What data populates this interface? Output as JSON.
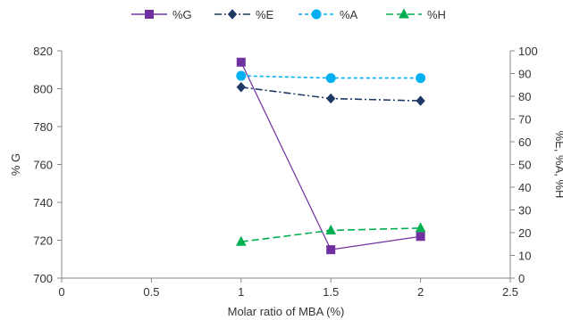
{
  "chart_data": {
    "type": "line",
    "xlabel": "Molar ratio of MBA (%)",
    "ylabel_left": "% G",
    "ylabel_right": "%E, %A, %H",
    "xlim": [
      0,
      2.5
    ],
    "x_ticks": [
      "0",
      "0.5",
      "1",
      "1.5",
      "2",
      "2.5"
    ],
    "y_left_lim": [
      700,
      820
    ],
    "y_left_ticks": [
      "700",
      "720",
      "740",
      "760",
      "780",
      "800",
      "820"
    ],
    "y_right_lim": [
      0,
      100
    ],
    "y_right_ticks": [
      "0",
      "10",
      "20",
      "30",
      "40",
      "50",
      "60",
      "70",
      "80",
      "90",
      "100"
    ],
    "grid": false,
    "legend_position": "top",
    "series": [
      {
        "name": "%G",
        "axis": "left",
        "color": "#7030a0",
        "dash": "solid",
        "marker": "square",
        "x": [
          1,
          1.5,
          2
        ],
        "y": [
          814,
          715,
          722
        ]
      },
      {
        "name": "%E",
        "axis": "right",
        "color": "#1f3864",
        "dash": "dashdot",
        "marker": "diamond",
        "x": [
          1,
          1.5,
          2
        ],
        "y": [
          84,
          79,
          78
        ]
      },
      {
        "name": "%A",
        "axis": "right",
        "color": "#00b0f0",
        "dash": "dash",
        "marker": "circle",
        "x": [
          1,
          1.5,
          2
        ],
        "y": [
          89,
          88,
          88
        ]
      },
      {
        "name": "%H",
        "axis": "right",
        "color": "#00b050",
        "dash": "longdash",
        "marker": "triangle",
        "x": [
          1,
          1.5,
          2
        ],
        "y": [
          16,
          21,
          22
        ]
      }
    ]
  }
}
